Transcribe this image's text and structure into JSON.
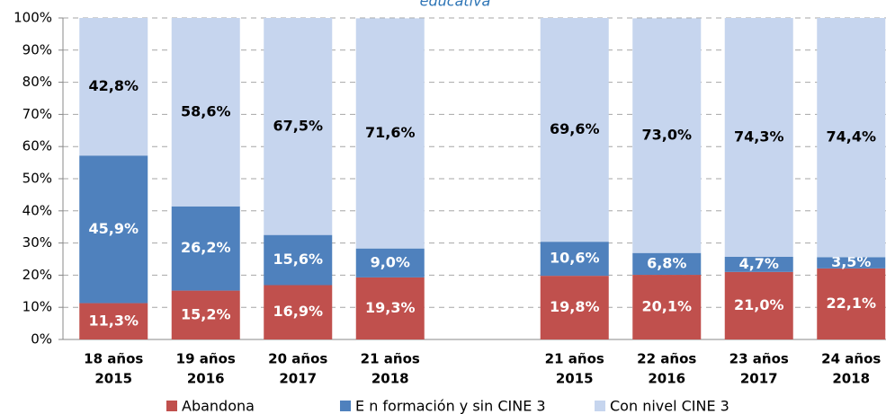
{
  "chart_data": {
    "type": "stacked_bar",
    "title": "educativa",
    "categories": [
      [
        "18 años",
        "2015"
      ],
      [
        "19 años",
        "2016"
      ],
      [
        "20 años",
        "2017"
      ],
      [
        "21 años",
        "2018"
      ],
      null,
      [
        "21 años",
        "2015"
      ],
      [
        "22 años",
        "2016"
      ],
      [
        "23 años",
        "2017"
      ],
      [
        "24 años",
        "2018"
      ]
    ],
    "series": [
      {
        "name": "Abandona",
        "color": "#c0504d",
        "label_color": "#ffffff",
        "values": [
          11.3,
          15.2,
          16.9,
          19.3,
          null,
          19.8,
          20.1,
          21.0,
          22.1
        ],
        "value_labels": [
          "11,3%",
          "15,2%",
          "16,9%",
          "19,3%",
          null,
          "19,8%",
          "20,1%",
          "21,0%",
          "22,1%"
        ]
      },
      {
        "name": "E n formación y sin CINE 3",
        "color": "#4f81bd",
        "label_color": "#ffffff",
        "values": [
          45.9,
          26.2,
          15.6,
          9.0,
          null,
          10.6,
          6.8,
          4.7,
          3.5
        ],
        "value_labels": [
          "45,9%",
          "26,2%",
          "15,6%",
          "9,0%",
          null,
          "10,6%",
          "6,8%",
          "4,7%",
          "3,5%"
        ]
      },
      {
        "name": "Con nivel CINE 3",
        "color": "#c6d5ee",
        "label_color": "#000000",
        "values": [
          42.8,
          58.6,
          67.5,
          71.6,
          null,
          69.6,
          73.0,
          74.3,
          74.4
        ],
        "value_labels": [
          "42,8%",
          "58,6%",
          "67,5%",
          "71,6%",
          null,
          "69,6%",
          "73,0%",
          "74,3%",
          "74,4%"
        ]
      }
    ],
    "ylim": [
      0,
      100
    ],
    "yticks": [
      {
        "value": 0,
        "label": "0%"
      },
      {
        "value": 10,
        "label": "10%"
      },
      {
        "value": 20,
        "label": "20%"
      },
      {
        "value": 30,
        "label": "30%"
      },
      {
        "value": 40,
        "label": "40%"
      },
      {
        "value": 50,
        "label": "50%"
      },
      {
        "value": 60,
        "label": "60%"
      },
      {
        "value": 70,
        "label": "70%"
      },
      {
        "value": 80,
        "label": "80%"
      },
      {
        "value": 90,
        "label": "90%"
      },
      {
        "value": 100,
        "label": "100%"
      }
    ],
    "grid": true
  }
}
